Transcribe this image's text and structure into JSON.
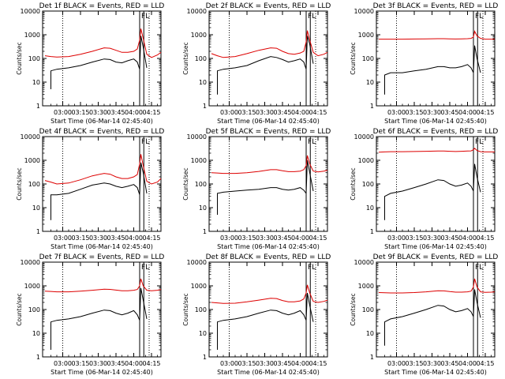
{
  "colors": {
    "events": "#000000",
    "lld": "#dd0000",
    "axes": "#000000"
  },
  "shared": {
    "xlabel": "Start Time (06-Mar-14 02:45:40)",
    "ylabel": "Counts/sec",
    "x_ticks": [
      "03:00",
      "03:15",
      "03:30",
      "03:45",
      "04:00",
      "04:15"
    ],
    "x_tick_values_min": [
      15,
      30,
      45,
      60,
      75,
      90
    ],
    "x_range_min": [
      -2,
      98
    ],
    "y_ticks": [
      "1",
      "10",
      "100",
      "1000",
      "10000"
    ],
    "y_scale": "log",
    "ylim": [
      1,
      10000
    ],
    "dotted_vlines_min": [
      15,
      88
    ],
    "solid_vlines_min": [
      80,
      83.5
    ],
    "marker_labels": [
      "F",
      "L"
    ]
  },
  "chart_data": [
    {
      "type": "line",
      "title": "Det 1f BLACK = Events, RED = LLD",
      "x_min": [
        0,
        5,
        10,
        20,
        30,
        40,
        50,
        55,
        60,
        65,
        70,
        75,
        78,
        80,
        81,
        83,
        86,
        90,
        95,
        98
      ],
      "series": [
        {
          "name": "Events",
          "color": "black",
          "start": 1,
          "values": [
            5,
            30,
            35,
            40,
            50,
            70,
            95,
            90,
            70,
            65,
            80,
            95,
            70,
            35,
            900,
            300,
            40,
            0,
            0,
            0
          ]
        },
        {
          "name": "LLD",
          "color": "red",
          "values": [
            130,
            120,
            115,
            120,
            150,
            200,
            280,
            270,
            220,
            180,
            180,
            200,
            250,
            600,
            1800,
            700,
            150,
            110,
            140,
            180
          ]
        }
      ]
    },
    {
      "type": "line",
      "title": "Det 2f BLACK = Events, RED = LLD",
      "x_min": [
        0,
        5,
        10,
        20,
        30,
        40,
        50,
        55,
        60,
        65,
        70,
        75,
        78,
        80,
        81,
        83,
        86,
        90,
        95,
        98
      ],
      "series": [
        {
          "name": "Events",
          "color": "black",
          "start": 1,
          "values": [
            3,
            30,
            35,
            40,
            50,
            80,
            120,
            110,
            90,
            70,
            80,
            95,
            70,
            35,
            900,
            400,
            60,
            0,
            0,
            0
          ]
        },
        {
          "name": "LLD",
          "color": "red",
          "values": [
            160,
            130,
            110,
            120,
            160,
            220,
            280,
            270,
            200,
            160,
            150,
            170,
            200,
            500,
            1500,
            600,
            180,
            130,
            150,
            180
          ]
        }
      ]
    },
    {
      "type": "line",
      "title": "Det 3f BLACK = Events, RED = LLD",
      "x_min": [
        0,
        5,
        10,
        20,
        30,
        40,
        50,
        55,
        60,
        65,
        70,
        75,
        78,
        80,
        81,
        83,
        86,
        90,
        95,
        98
      ],
      "series": [
        {
          "name": "Events",
          "color": "black",
          "start": 1,
          "values": [
            3,
            20,
            25,
            25,
            30,
            35,
            45,
            45,
            40,
            40,
            45,
            55,
            40,
            25,
            350,
            100,
            25,
            0,
            0,
            0
          ]
        },
        {
          "name": "LLD",
          "color": "red",
          "values": [
            650,
            650,
            650,
            650,
            660,
            670,
            680,
            680,
            670,
            660,
            670,
            680,
            700,
            800,
            1400,
            900,
            700,
            650,
            650,
            650
          ]
        }
      ]
    },
    {
      "type": "line",
      "title": "Det 4f BLACK = Events, RED = LLD",
      "x_min": [
        0,
        5,
        10,
        20,
        30,
        40,
        50,
        55,
        60,
        65,
        70,
        75,
        78,
        80,
        81,
        83,
        86,
        90,
        95,
        98
      ],
      "series": [
        {
          "name": "Events",
          "color": "black",
          "start": 1,
          "values": [
            3,
            35,
            35,
            40,
            60,
            90,
            110,
            100,
            80,
            70,
            80,
            95,
            70,
            35,
            800,
            300,
            40,
            0,
            0,
            0
          ]
        },
        {
          "name": "LLD",
          "color": "red",
          "values": [
            140,
            120,
            100,
            110,
            150,
            220,
            280,
            260,
            200,
            170,
            170,
            200,
            250,
            700,
            1800,
            600,
            130,
            100,
            120,
            170
          ]
        }
      ]
    },
    {
      "type": "line",
      "title": "Det 5f BLACK = Events, RED = LLD",
      "x_min": [
        0,
        5,
        10,
        20,
        30,
        40,
        50,
        55,
        60,
        65,
        70,
        75,
        78,
        80,
        81,
        83,
        86,
        90,
        95,
        98
      ],
      "series": [
        {
          "name": "Events",
          "color": "black",
          "start": 1,
          "values": [
            5,
            40,
            45,
            50,
            55,
            60,
            70,
            70,
            60,
            55,
            60,
            70,
            55,
            40,
            1000,
            300,
            50,
            0,
            0,
            0
          ]
        },
        {
          "name": "LLD",
          "color": "red",
          "values": [
            300,
            290,
            280,
            280,
            300,
            340,
            400,
            400,
            360,
            330,
            330,
            350,
            400,
            600,
            1600,
            700,
            350,
            320,
            350,
            380
          ]
        }
      ]
    },
    {
      "type": "line",
      "title": "Det 6f BLACK = Events, RED = LLD",
      "x_min": [
        0,
        5,
        10,
        20,
        30,
        40,
        50,
        55,
        60,
        65,
        70,
        75,
        78,
        80,
        81,
        83,
        86,
        90,
        95,
        98
      ],
      "series": [
        {
          "name": "Events",
          "color": "black",
          "start": 1,
          "values": [
            3,
            30,
            40,
            50,
            70,
            100,
            150,
            140,
            100,
            80,
            90,
            110,
            80,
            50,
            700,
            200,
            45,
            0,
            0,
            0
          ]
        },
        {
          "name": "LLD",
          "color": "red",
          "values": [
            2200,
            2250,
            2300,
            2300,
            2350,
            2400,
            2450,
            2450,
            2400,
            2350,
            2400,
            2450,
            2500,
            2800,
            3200,
            2600,
            2300,
            2250,
            2250,
            2250
          ]
        }
      ]
    },
    {
      "type": "line",
      "title": "Det 7f BLACK = Events, RED = LLD",
      "x_min": [
        0,
        5,
        10,
        20,
        30,
        40,
        50,
        55,
        60,
        65,
        70,
        75,
        78,
        80,
        81,
        83,
        86,
        90,
        95,
        98
      ],
      "series": [
        {
          "name": "Events",
          "color": "black",
          "start": 1,
          "values": [
            2,
            30,
            35,
            40,
            50,
            70,
            95,
            90,
            70,
            60,
            70,
            90,
            60,
            35,
            800,
            250,
            40,
            0,
            0,
            0
          ]
        },
        {
          "name": "LLD",
          "color": "red",
          "values": [
            600,
            580,
            560,
            560,
            600,
            650,
            720,
            710,
            660,
            620,
            620,
            650,
            700,
            1000,
            2000,
            1000,
            650,
            620,
            650,
            700
          ]
        }
      ]
    },
    {
      "type": "line",
      "title": "Det 8f BLACK = Events, RED = LLD",
      "x_min": [
        0,
        5,
        10,
        20,
        30,
        40,
        50,
        55,
        60,
        65,
        70,
        75,
        78,
        80,
        81,
        83,
        86,
        90,
        95,
        98
      ],
      "series": [
        {
          "name": "Events",
          "color": "black",
          "start": 1,
          "values": [
            2,
            30,
            35,
            40,
            50,
            70,
            95,
            90,
            70,
            60,
            70,
            90,
            60,
            35,
            500,
            150,
            30,
            0,
            0,
            0
          ]
        },
        {
          "name": "LLD",
          "color": "red",
          "values": [
            200,
            190,
            180,
            185,
            210,
            250,
            300,
            290,
            240,
            210,
            210,
            230,
            280,
            500,
            1100,
            500,
            220,
            200,
            220,
            250
          ]
        }
      ]
    },
    {
      "type": "line",
      "title": "Det 9f BLACK = Events, RED = LLD",
      "x_min": [
        0,
        5,
        10,
        20,
        30,
        40,
        50,
        55,
        60,
        65,
        70,
        75,
        78,
        80,
        81,
        83,
        86,
        90,
        95,
        98
      ],
      "series": [
        {
          "name": "Events",
          "color": "black",
          "start": 1,
          "values": [
            3,
            30,
            40,
            50,
            70,
            100,
            150,
            140,
            100,
            80,
            90,
            110,
            80,
            50,
            700,
            200,
            45,
            0,
            0,
            0
          ]
        },
        {
          "name": "LLD",
          "color": "red",
          "values": [
            520,
            510,
            500,
            500,
            520,
            560,
            620,
            610,
            570,
            540,
            540,
            560,
            600,
            900,
            2000,
            900,
            560,
            530,
            540,
            560
          ]
        }
      ]
    }
  ]
}
